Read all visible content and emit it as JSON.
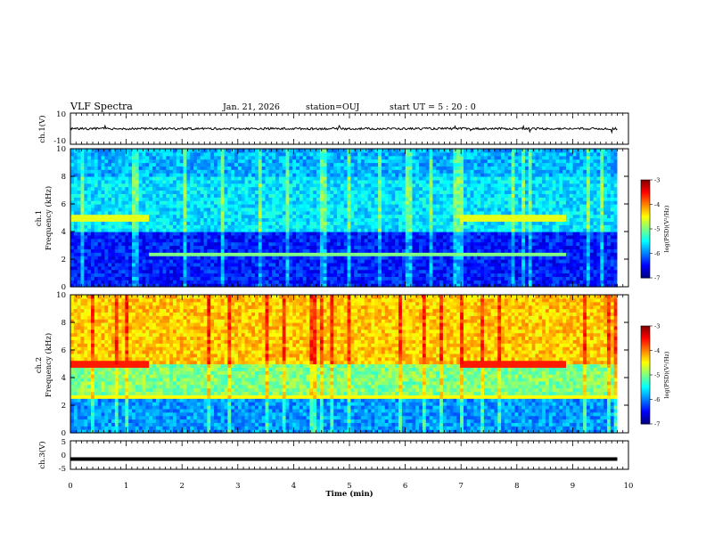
{
  "header": {
    "title": "VLF Spectra",
    "date": "Jan. 21, 2026",
    "station": "station=OUJ",
    "start": "start  UT =  5 : 20 : 0"
  },
  "chart_data": [
    {
      "id": "ch1-waveform",
      "type": "line",
      "ylabel": "ch.1(V)",
      "ylim": [
        -10,
        10
      ],
      "yticks": [
        "10",
        "-10"
      ],
      "baseline": 0,
      "amplitude": 1
    },
    {
      "id": "ch1-spectrogram",
      "type": "heatmap",
      "ylabel": "Frequency (kHz)",
      "channel_label": "ch.1",
      "ylim": [
        0,
        10
      ],
      "yticks": [
        "0",
        "2",
        "4",
        "6",
        "8",
        "10"
      ],
      "colorbar": {
        "label": "log(PSD)(V²/Hz)",
        "ticks": [
          "-3",
          "-4",
          "-5",
          "-6",
          "-7"
        ],
        "range": [
          -7,
          -3
        ]
      },
      "bands_khz": [
        {
          "f0": 4.8,
          "f1": 5.2,
          "t0": 0.0,
          "t1": 1.4,
          "level": -4.6
        },
        {
          "f0": 4.8,
          "f1": 5.2,
          "t0": 7.0,
          "t1": 8.9,
          "level": -4.6
        },
        {
          "f0": 2.3,
          "f1": 2.5,
          "t0": 1.4,
          "t1": 8.9,
          "level": -5.0
        }
      ]
    },
    {
      "id": "ch2-spectrogram",
      "type": "heatmap",
      "ylabel": "Frequency (kHz)",
      "channel_label": "ch.2",
      "ylim": [
        0,
        10
      ],
      "yticks": [
        "0",
        "2",
        "4",
        "6",
        "8",
        "10"
      ],
      "colorbar": {
        "label": "log(PSD)(V²/Hz)",
        "ticks": [
          "-3",
          "-4",
          "-5",
          "-6",
          "-7"
        ],
        "range": [
          -7,
          -3
        ]
      },
      "bands_khz": [
        {
          "f0": 4.8,
          "f1": 5.2,
          "t0": 0.0,
          "t1": 1.4,
          "level": -3.6
        },
        {
          "f0": 4.8,
          "f1": 5.2,
          "t0": 7.0,
          "t1": 8.9,
          "level": -3.6
        },
        {
          "f0": 2.5,
          "f1": 2.8,
          "t0": 0.0,
          "t1": 9.8,
          "level": -4.5
        }
      ]
    },
    {
      "id": "ch3-waveform",
      "type": "line",
      "ylabel": "ch.3(V)",
      "ylim": [
        -5,
        5
      ],
      "yticks": [
        "5",
        "0",
        "-5"
      ],
      "baseline": -1.4,
      "amplitude": 0.3
    }
  ],
  "time_axis": {
    "title": "Time  (min)",
    "range": [
      0,
      10
    ],
    "ticks": [
      "0",
      "1",
      "2",
      "3",
      "4",
      "5",
      "6",
      "7",
      "8",
      "9",
      "10"
    ],
    "data_end": 9.8
  }
}
